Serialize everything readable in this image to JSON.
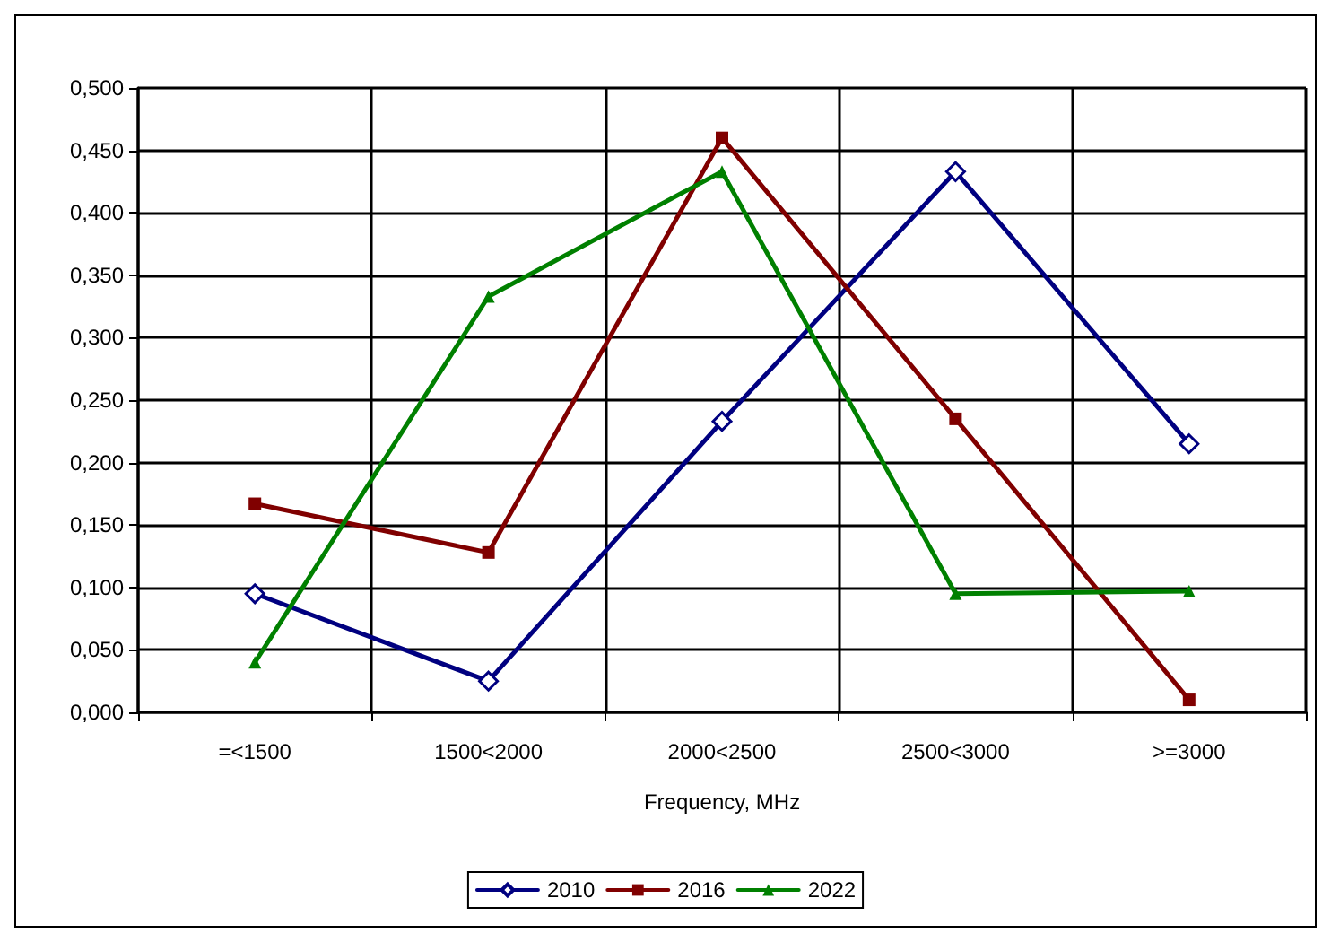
{
  "chart_data": {
    "type": "line",
    "xlabel": "Frequency, MHz",
    "categories": [
      "=<1500",
      "1500<2000",
      "2000<2500",
      "2500<3000",
      ">=3000"
    ],
    "series": [
      {
        "name": "2010",
        "color": "#000080",
        "marker": "diamond",
        "values": [
          0.095,
          0.025,
          0.233,
          0.433,
          0.215
        ]
      },
      {
        "name": "2016",
        "color": "#800000",
        "marker": "square",
        "values": [
          0.167,
          0.128,
          0.46,
          0.235,
          0.01
        ]
      },
      {
        "name": "2022",
        "color": "#008000",
        "marker": "triangle",
        "values": [
          0.04,
          0.333,
          0.433,
          0.095,
          0.097
        ]
      }
    ],
    "ylim": [
      0,
      0.5
    ],
    "yticks": [
      {
        "value": 0,
        "label": "0,000"
      },
      {
        "value": 0.05,
        "label": "0,050"
      },
      {
        "value": 0.1,
        "label": "0,100"
      },
      {
        "value": 0.15,
        "label": "0,150"
      },
      {
        "value": 0.2,
        "label": "0,200"
      },
      {
        "value": 0.25,
        "label": "0,250"
      },
      {
        "value": 0.3,
        "label": "0,300"
      },
      {
        "value": 0.35,
        "label": "0,350"
      },
      {
        "value": 0.4,
        "label": "0,400"
      },
      {
        "value": 0.45,
        "label": "0,450"
      },
      {
        "value": 0.5,
        "label": "0,500"
      }
    ],
    "grid": true,
    "legend": "bottom"
  }
}
